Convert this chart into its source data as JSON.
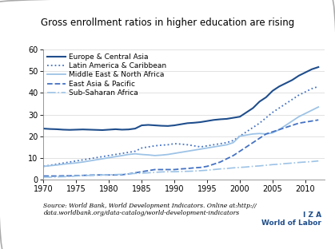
{
  "title": "Gross enrollment ratios in higher education are rising",
  "source_text": "Source: World Bank, World Development Indicators. Online at:http://\ndata.worldbank.org/data-catalog/world-development-indicators",
  "iza_text": "I Z A\nWorld of Labor",
  "years": [
    1970,
    1971,
    1972,
    1973,
    1974,
    1975,
    1976,
    1977,
    1978,
    1979,
    1980,
    1981,
    1982,
    1983,
    1984,
    1985,
    1986,
    1987,
    1988,
    1989,
    1990,
    1991,
    1992,
    1993,
    1994,
    1995,
    1996,
    1997,
    1998,
    1999,
    2000,
    2001,
    2002,
    2003,
    2004,
    2005,
    2006,
    2007,
    2008,
    2009,
    2010,
    2011,
    2012
  ],
  "europe_central_asia": [
    23.5,
    23.3,
    23.2,
    23.0,
    22.9,
    23.0,
    23.1,
    23.0,
    22.9,
    22.8,
    23.0,
    23.2,
    23.0,
    23.1,
    23.5,
    25.0,
    25.2,
    25.0,
    24.8,
    24.7,
    25.0,
    25.5,
    26.0,
    26.2,
    26.5,
    27.0,
    27.5,
    27.8,
    28.0,
    28.5,
    29.0,
    31.0,
    33.0,
    36.0,
    38.0,
    41.0,
    43.0,
    44.5,
    46.0,
    48.0,
    49.5,
    51.0,
    52.0
  ],
  "latin_america": [
    6.0,
    6.5,
    7.0,
    7.5,
    8.0,
    8.5,
    9.0,
    9.5,
    10.0,
    10.5,
    11.0,
    11.5,
    12.0,
    12.5,
    13.0,
    14.5,
    15.0,
    15.5,
    15.8,
    16.0,
    16.5,
    16.3,
    16.0,
    15.5,
    15.0,
    15.5,
    16.0,
    16.5,
    17.0,
    18.0,
    20.0,
    22.0,
    24.0,
    26.0,
    28.5,
    31.0,
    33.0,
    35.0,
    37.0,
    39.0,
    40.5,
    42.0,
    43.0
  ],
  "middle_east_north_africa": [
    6.0,
    6.3,
    6.6,
    7.0,
    7.3,
    7.6,
    8.0,
    8.5,
    9.0,
    9.5,
    10.0,
    10.5,
    11.0,
    11.5,
    11.8,
    11.5,
    11.3,
    11.0,
    11.2,
    11.5,
    12.0,
    12.5,
    13.0,
    13.5,
    14.0,
    14.5,
    15.0,
    15.5,
    16.0,
    17.0,
    20.0,
    20.5,
    21.0,
    21.2,
    21.0,
    21.5,
    23.0,
    25.0,
    27.0,
    29.0,
    30.5,
    32.0,
    33.5
  ],
  "east_asia_pacific": [
    1.5,
    1.5,
    1.5,
    1.6,
    1.6,
    1.7,
    1.8,
    1.9,
    2.0,
    2.0,
    2.0,
    2.0,
    2.1,
    2.5,
    3.0,
    3.5,
    4.0,
    4.5,
    4.5,
    4.5,
    4.5,
    4.8,
    5.0,
    5.3,
    5.5,
    6.0,
    7.0,
    8.0,
    9.5,
    11.0,
    13.0,
    15.0,
    17.0,
    19.0,
    21.0,
    22.0,
    23.0,
    24.0,
    25.0,
    26.0,
    26.5,
    27.0,
    27.5
  ],
  "sub_saharan_africa": [
    1.0,
    1.0,
    1.1,
    1.2,
    1.3,
    1.5,
    1.7,
    1.8,
    1.9,
    2.0,
    2.1,
    2.2,
    2.3,
    2.5,
    2.7,
    2.8,
    3.0,
    3.2,
    3.4,
    3.5,
    3.5,
    3.6,
    3.7,
    3.8,
    4.0,
    4.2,
    4.5,
    4.8,
    5.0,
    5.3,
    5.5,
    5.7,
    6.0,
    6.2,
    6.5,
    6.8,
    7.0,
    7.3,
    7.5,
    7.8,
    8.0,
    8.2,
    8.5
  ],
  "color_dark_blue": "#1F4E8C",
  "color_medium_blue": "#4472C4",
  "color_light_blue": "#9DC3E6",
  "ylim": [
    0,
    60
  ],
  "yticks": [
    0,
    10,
    20,
    30,
    40,
    50,
    60
  ],
  "xlim": [
    1970,
    2013
  ],
  "xticks": [
    1970,
    1975,
    1980,
    1985,
    1990,
    1995,
    2000,
    2005,
    2010
  ],
  "bg_color": "#FFFFFF",
  "border_color": "#AAAAAA",
  "iza_color": "#1F4E8C"
}
